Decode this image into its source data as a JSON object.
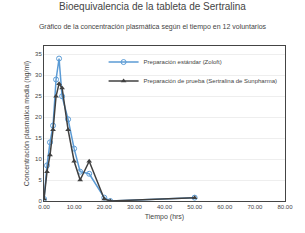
{
  "chart_data": {
    "type": "line",
    "title": "Bioequivalencia de la tableta de Sertralina",
    "subtitle": "Gráfico de la concentración plasmática según el tiempo en 12 voluntarios",
    "x_label": "Tiempo (hrs)",
    "y_label": "Concentración plasmática media (ng/ml)",
    "x": [
      0,
      1,
      2,
      3,
      4,
      5,
      6,
      8,
      10,
      12,
      15,
      20,
      22,
      50
    ],
    "series": [
      {
        "name": "Preparación estándar (Zoloft)",
        "color": "#5b9bd5",
        "marker": "circle-open",
        "values": [
          0.5,
          8.5,
          14,
          18,
          29,
          34,
          25,
          19.5,
          12.5,
          7,
          6.5,
          0.8,
          0,
          0.8
        ]
      },
      {
        "name": "Preparación de prueba (Sertralina de Sunpharma)",
        "color": "#404040",
        "marker": "triangle-up",
        "values": [
          0.5,
          7,
          11,
          17,
          25,
          28,
          27,
          17,
          9.5,
          5,
          9.5,
          0.5,
          0,
          0.8
        ]
      }
    ],
    "xlim": [
      0,
      80
    ],
    "ylim": [
      0,
      37
    ],
    "xticks": [
      {
        "value": 0,
        "label": "0.00"
      },
      {
        "value": 10,
        "label": "10.00"
      },
      {
        "value": 20,
        "label": "20.00"
      },
      {
        "value": 30,
        "label": "30.00"
      },
      {
        "value": 40,
        "label": "40.00"
      },
      {
        "value": 50,
        "label": "50.00"
      },
      {
        "value": 60,
        "label": "60.00"
      },
      {
        "value": 70,
        "label": "70.00"
      },
      {
        "value": 80,
        "label": "80.00"
      }
    ],
    "yticks": [
      0,
      5,
      10,
      15,
      20,
      25,
      30,
      35
    ],
    "grid": "y",
    "legend": "upper right"
  }
}
